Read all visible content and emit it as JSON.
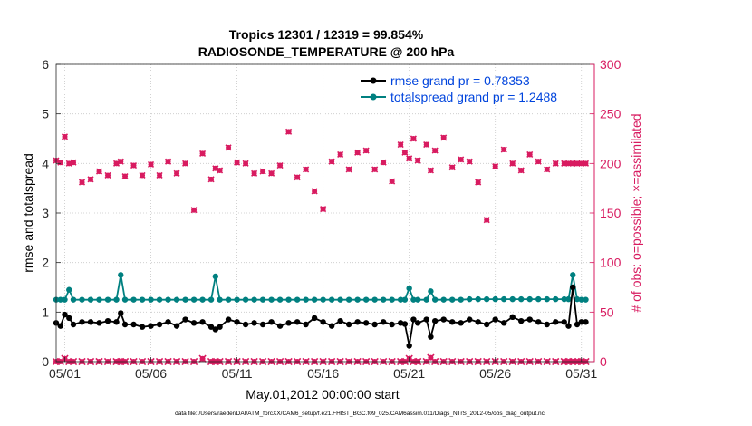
{
  "chart_data": {
    "type": "line",
    "title_line1": "Tropics 12301 / 12319 = 99.854%",
    "title_line2": "RADIOSONDE_TEMPERATURE @ 200 hPa",
    "xlabel": "May.01,2012 00:00:00 start",
    "ylabel_left": "rmse and totalspread",
    "ylabel_right": "# of obs: o=possible; ×=assimilated",
    "footer": "data file: /Users/raeder/DAI/ATM_forcXX/CAM6_setup/f.e21.FHIST_BGC.f09_025.CAM6assim.011/Diags_NTrS_2012-05/obs_diag_output.nc",
    "xlim": [
      0.5,
      31.75
    ],
    "ylim_left": [
      0,
      6
    ],
    "ylim_right": [
      0,
      300
    ],
    "x_ticks": [
      1,
      6,
      11,
      16,
      21,
      26,
      31
    ],
    "x_tick_labels": [
      "05/01",
      "05/06",
      "05/11",
      "05/16",
      "05/21",
      "05/26",
      "05/31"
    ],
    "y_left_ticks": [
      "0",
      "1",
      "2",
      "3",
      "4",
      "5",
      "6"
    ],
    "y_right_ticks": [
      "0",
      "50",
      "100",
      "150",
      "200",
      "250",
      "300"
    ],
    "colors": {
      "rmse": "#000000",
      "spread": "#008080",
      "obs": "#d81b60",
      "legend_text": "#0044dd",
      "grid": "#c8c8c8"
    },
    "series": [
      {
        "name": "rmse grand pr = 0.78353",
        "axis": "left",
        "x": [
          0.5,
          0.75,
          1.0,
          1.25,
          1.5,
          2.0,
          2.5,
          3.0,
          3.5,
          4.0,
          4.25,
          4.5,
          5.0,
          5.5,
          6.0,
          6.5,
          7.0,
          7.5,
          8.0,
          8.5,
          9.0,
          9.5,
          9.75,
          10.0,
          10.5,
          11.0,
          11.5,
          12.0,
          12.5,
          13.0,
          13.5,
          14.0,
          14.5,
          15.0,
          15.5,
          16.0,
          16.5,
          17.0,
          17.5,
          18.0,
          18.5,
          19.0,
          19.5,
          20.0,
          20.5,
          20.75,
          21.0,
          21.25,
          21.5,
          22.0,
          22.25,
          22.5,
          23.0,
          23.5,
          24.0,
          24.5,
          25.0,
          25.5,
          26.0,
          26.5,
          27.0,
          27.5,
          28.0,
          28.5,
          29.0,
          29.5,
          30.0,
          30.25,
          30.5,
          30.75,
          31.0,
          31.25
        ],
        "values": [
          0.78,
          0.72,
          0.95,
          0.88,
          0.75,
          0.8,
          0.8,
          0.78,
          0.82,
          0.8,
          0.98,
          0.75,
          0.75,
          0.7,
          0.72,
          0.75,
          0.8,
          0.72,
          0.85,
          0.78,
          0.8,
          0.7,
          0.65,
          0.7,
          0.85,
          0.8,
          0.75,
          0.78,
          0.75,
          0.8,
          0.72,
          0.78,
          0.8,
          0.75,
          0.88,
          0.8,
          0.72,
          0.82,
          0.75,
          0.8,
          0.78,
          0.75,
          0.8,
          0.75,
          0.78,
          0.76,
          0.32,
          0.85,
          0.78,
          0.85,
          0.5,
          0.82,
          0.85,
          0.8,
          0.78,
          0.85,
          0.8,
          0.75,
          0.85,
          0.78,
          0.9,
          0.82,
          0.85,
          0.8,
          0.75,
          0.8,
          0.8,
          0.72,
          1.5,
          0.75,
          0.8,
          0.8
        ]
      },
      {
        "name": "totalspread grand pr = 1.2488",
        "axis": "left",
        "x": [
          0.5,
          0.75,
          1.0,
          1.25,
          1.5,
          2.0,
          2.5,
          3.0,
          3.5,
          4.0,
          4.25,
          4.5,
          5.0,
          5.5,
          6.0,
          6.5,
          7.0,
          7.5,
          8.0,
          8.5,
          9.0,
          9.5,
          9.75,
          10.0,
          10.5,
          11.0,
          11.5,
          12.0,
          12.5,
          13.0,
          13.5,
          14.0,
          14.5,
          15.0,
          15.5,
          16.0,
          16.5,
          17.0,
          17.5,
          18.0,
          18.5,
          19.0,
          19.5,
          20.0,
          20.5,
          20.75,
          21.0,
          21.25,
          21.5,
          22.0,
          22.25,
          22.5,
          23.0,
          23.5,
          24.0,
          24.5,
          25.0,
          25.5,
          26.0,
          26.5,
          27.0,
          27.5,
          28.0,
          28.5,
          29.0,
          29.5,
          30.0,
          30.25,
          30.5,
          30.75,
          31.0,
          31.25
        ],
        "values": [
          1.25,
          1.25,
          1.25,
          1.45,
          1.25,
          1.25,
          1.25,
          1.25,
          1.25,
          1.25,
          1.75,
          1.25,
          1.25,
          1.25,
          1.25,
          1.25,
          1.25,
          1.25,
          1.25,
          1.25,
          1.25,
          1.25,
          1.72,
          1.25,
          1.25,
          1.25,
          1.25,
          1.25,
          1.25,
          1.25,
          1.25,
          1.25,
          1.25,
          1.25,
          1.25,
          1.25,
          1.25,
          1.25,
          1.25,
          1.25,
          1.25,
          1.25,
          1.25,
          1.25,
          1.25,
          1.25,
          1.48,
          1.25,
          1.25,
          1.25,
          1.42,
          1.25,
          1.25,
          1.25,
          1.25,
          1.26,
          1.26,
          1.26,
          1.26,
          1.26,
          1.26,
          1.26,
          1.26,
          1.26,
          1.26,
          1.26,
          1.26,
          1.26,
          1.75,
          1.26,
          1.25,
          1.25
        ]
      },
      {
        "name": "obs possible",
        "axis": "right",
        "x": [
          0.5,
          0.75,
          1.0,
          1.25,
          1.5,
          2.0,
          2.5,
          3.0,
          3.5,
          4.0,
          4.25,
          4.5,
          5.0,
          5.5,
          6.0,
          6.5,
          7.0,
          7.5,
          8.0,
          8.5,
          9.0,
          9.5,
          9.75,
          10.0,
          10.5,
          11.0,
          11.5,
          12.0,
          12.5,
          13.0,
          13.5,
          14.0,
          14.5,
          15.0,
          15.5,
          16.0,
          16.5,
          17.0,
          17.5,
          18.0,
          18.5,
          19.0,
          19.5,
          20.0,
          20.5,
          20.75,
          21.0,
          21.25,
          21.5,
          22.0,
          22.25,
          22.5,
          23.0,
          23.5,
          24.0,
          24.5,
          25.0,
          25.5,
          26.0,
          26.5,
          27.0,
          27.5,
          28.0,
          28.5,
          29.0,
          29.5,
          30.0,
          30.25,
          30.5,
          30.75,
          31.0,
          31.25
        ],
        "values": [
          203,
          201,
          227,
          200,
          201,
          181,
          184,
          192,
          188,
          200,
          202,
          187,
          198,
          188,
          199,
          188,
          202,
          190,
          200,
          153,
          210,
          184,
          195,
          193,
          216,
          201,
          200,
          190,
          192,
          190,
          198,
          232,
          186,
          194,
          172,
          154,
          202,
          209,
          194,
          211,
          213,
          194,
          201,
          182,
          219,
          211,
          205,
          225,
          203,
          219,
          193,
          213,
          226,
          196,
          204,
          202,
          181,
          143,
          197,
          214,
          200,
          193,
          209,
          202,
          194,
          200,
          200,
          200,
          200,
          200,
          200,
          200
        ]
      },
      {
        "name": "obs assimilated",
        "axis": "right",
        "x": [
          0.5,
          0.75,
          1.0,
          1.25,
          1.5,
          2.0,
          2.5,
          3.0,
          3.5,
          4.0,
          4.25,
          4.5,
          5.0,
          5.5,
          6.0,
          6.5,
          7.0,
          7.5,
          8.0,
          8.5,
          9.0,
          9.5,
          9.75,
          10.0,
          10.5,
          11.0,
          11.5,
          12.0,
          12.5,
          13.0,
          13.5,
          14.0,
          14.5,
          15.0,
          15.5,
          16.0,
          16.5,
          17.0,
          17.5,
          18.0,
          18.5,
          19.0,
          19.5,
          20.0,
          20.5,
          20.75,
          21.0,
          21.25,
          21.5,
          22.0,
          22.25,
          22.5,
          23.0,
          23.5,
          24.0,
          24.5,
          25.0,
          25.5,
          26.0,
          26.5,
          27.0,
          27.5,
          28.0,
          28.5,
          29.0,
          29.5,
          30.0,
          30.25,
          30.5,
          30.75,
          31.0,
          31.25
        ],
        "values": [
          0,
          0,
          3,
          0,
          0,
          0,
          0,
          0,
          0,
          0,
          0,
          0,
          0,
          0,
          0,
          0,
          0,
          0,
          0,
          0,
          3,
          0,
          0,
          0,
          0,
          0,
          0,
          0,
          0,
          0,
          0,
          0,
          0,
          0,
          0,
          0,
          0,
          0,
          0,
          0,
          0,
          0,
          0,
          0,
          0,
          0,
          3,
          0,
          0,
          0,
          4,
          0,
          0,
          0,
          0,
          0,
          0,
          0,
          0,
          0,
          0,
          0,
          0,
          0,
          0,
          0,
          0,
          0,
          0,
          0,
          0,
          0
        ]
      }
    ]
  }
}
